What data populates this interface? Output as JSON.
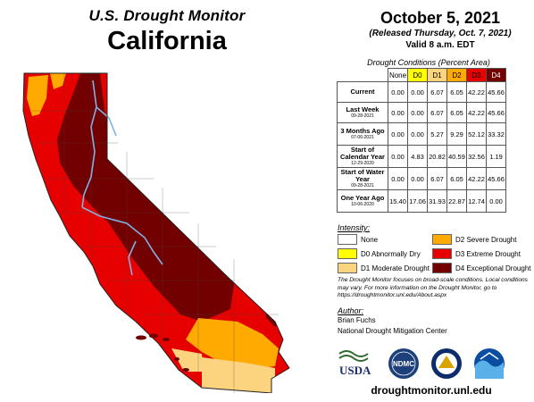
{
  "header": {
    "subtitle": "U.S. Drought Monitor",
    "state": "California",
    "date": "October 5, 2021",
    "released": "(Released Thursday, Oct. 7, 2021)",
    "valid": "Valid 8 a.m. EDT"
  },
  "conditions": {
    "title": "Drought Conditions (Percent Area)",
    "columns": [
      "None",
      "D0",
      "D1",
      "D2",
      "D3",
      "D4"
    ],
    "column_colors": [
      "#ffffff",
      "#ffff00",
      "#fcd37f",
      "#ffaa00",
      "#e60000",
      "#730000"
    ],
    "rows": [
      {
        "label": "Current",
        "date": "",
        "values": [
          "0.00",
          "0.00",
          "6.07",
          "6.05",
          "42.22",
          "45.66"
        ]
      },
      {
        "label": "Last Week",
        "date": "09-28-2021",
        "values": [
          "0.00",
          "0.00",
          "6.07",
          "6.05",
          "42.22",
          "45.66"
        ]
      },
      {
        "label": "3 Months Ago",
        "date": "07-06-2021",
        "values": [
          "0.00",
          "0.00",
          "5.27",
          "9.29",
          "52.12",
          "33.32"
        ]
      },
      {
        "label": "Start of Calendar Year",
        "date": "12-29-2020",
        "values": [
          "0.00",
          "4.83",
          "20.82",
          "40.59",
          "32.56",
          "1.19"
        ]
      },
      {
        "label": "Start of Water Year",
        "date": "09-28-2021",
        "values": [
          "0.00",
          "0.00",
          "6.07",
          "6.05",
          "42.22",
          "45.66"
        ]
      },
      {
        "label": "One Year Ago",
        "date": "10-06-2020",
        "values": [
          "15.40",
          "17.06",
          "31.93",
          "22.87",
          "12.74",
          "0.00"
        ]
      }
    ]
  },
  "intensity": {
    "heading": "Intensity:",
    "items": [
      {
        "label": "None",
        "color": "#ffffff"
      },
      {
        "label": "D2 Severe Drought",
        "color": "#ffaa00"
      },
      {
        "label": "D0 Abnormally Dry",
        "color": "#ffff00"
      },
      {
        "label": "D3 Extreme Drought",
        "color": "#e60000"
      },
      {
        "label": "D1 Moderate Drought",
        "color": "#fcd37f"
      },
      {
        "label": "D4 Exceptional Drought",
        "color": "#730000"
      }
    ]
  },
  "note": "The Drought Monitor focuses on broad-scale conditions. Local conditions may vary. For more information on the Drought Monitor, go to https://droughtmonitor.unl.edu/About.aspx",
  "author": {
    "heading": "Author:",
    "name": "Brian Fuchs",
    "org": "National Drought Mitigation Center"
  },
  "logos": {
    "usda": "USDA",
    "ndmc": "NDMC"
  },
  "url": "droughtmonitor.unl.edu"
}
